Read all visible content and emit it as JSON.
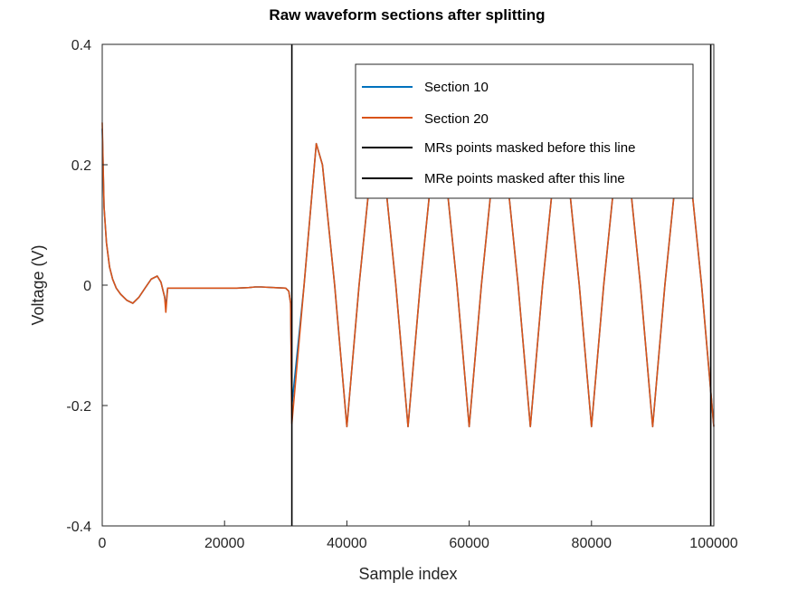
{
  "chart_data": {
    "type": "line",
    "title": "Raw waveform sections after splitting",
    "xlabel": "Sample index",
    "ylabel": "Voltage (V)",
    "xlim": [
      0,
      100000
    ],
    "ylim": [
      -0.4,
      0.4
    ],
    "xticks": [
      0,
      20000,
      40000,
      60000,
      80000,
      100000
    ],
    "xtick_labels": [
      "0",
      "20000",
      "40000",
      "60000",
      "80000",
      "100000"
    ],
    "yticks": [
      -0.4,
      -0.2,
      0,
      0.2,
      0.4
    ],
    "ytick_labels": [
      "-0.4",
      "-0.2",
      "0",
      "0.2",
      "0.4"
    ],
    "grid": false,
    "legend_position": "top-right",
    "series": [
      {
        "name": "Section 10",
        "color": "#0072bd",
        "x": [
          0,
          300,
          700,
          1200,
          1700,
          2300,
          3000,
          4000,
          5000,
          6000,
          7000,
          8000,
          9000,
          9600,
          10200,
          10400,
          10700,
          12000,
          15000,
          18000,
          20000,
          22000,
          24000,
          25000,
          26000,
          28000,
          30000,
          30500,
          30800,
          31000,
          33000,
          35000,
          36000,
          38000,
          40000,
          42000,
          44000,
          45000,
          46000,
          48000,
          50000,
          52000,
          54000,
          55000,
          56000,
          58000,
          60000,
          62000,
          64000,
          65000,
          66000,
          68000,
          70000,
          72000,
          74000,
          75000,
          76000,
          78000,
          80000,
          82000,
          84000,
          85000,
          86000,
          88000,
          90000,
          92000,
          94000,
          95000,
          96000,
          98000,
          100000
        ],
        "y": [
          0.26,
          0.13,
          0.07,
          0.03,
          0.01,
          -0.005,
          -0.015,
          -0.025,
          -0.03,
          -0.02,
          -0.005,
          0.01,
          0.015,
          0.005,
          -0.02,
          -0.035,
          -0.005,
          -0.005,
          -0.005,
          -0.005,
          -0.005,
          -0.005,
          -0.004,
          -0.003,
          -0.003,
          -0.004,
          -0.005,
          -0.01,
          -0.03,
          -0.2,
          0.0,
          0.235,
          0.2,
          0.0,
          -0.235,
          0.0,
          0.2,
          0.235,
          0.2,
          0.0,
          -0.235,
          0.0,
          0.2,
          0.235,
          0.2,
          0.0,
          -0.235,
          0.0,
          0.2,
          0.235,
          0.2,
          0.0,
          -0.235,
          0.0,
          0.2,
          0.235,
          0.2,
          0.0,
          -0.235,
          0.0,
          0.2,
          0.235,
          0.2,
          0.0,
          -0.235,
          0.0,
          0.2,
          0.235,
          0.2,
          0.0,
          -0.235
        ]
      },
      {
        "name": "Section 20",
        "color": "#d95319",
        "x": [
          0,
          300,
          700,
          1200,
          1700,
          2300,
          3000,
          4000,
          5000,
          6000,
          7000,
          8000,
          9000,
          9600,
          10200,
          10400,
          10700,
          12000,
          15000,
          18000,
          20000,
          22000,
          24000,
          25000,
          26000,
          28000,
          30000,
          30500,
          30800,
          31000,
          33000,
          35000,
          36000,
          38000,
          40000,
          42000,
          44000,
          45000,
          46000,
          48000,
          50000,
          52000,
          54000,
          55000,
          56000,
          58000,
          60000,
          62000,
          64000,
          65000,
          66000,
          68000,
          70000,
          72000,
          74000,
          75000,
          76000,
          78000,
          80000,
          82000,
          84000,
          85000,
          86000,
          88000,
          90000,
          92000,
          94000,
          95000,
          96000,
          98000,
          100000
        ],
        "y": [
          0.27,
          0.13,
          0.07,
          0.03,
          0.01,
          -0.005,
          -0.015,
          -0.025,
          -0.03,
          -0.02,
          -0.005,
          0.01,
          0.015,
          0.005,
          -0.02,
          -0.045,
          -0.005,
          -0.005,
          -0.005,
          -0.005,
          -0.005,
          -0.005,
          -0.004,
          -0.003,
          -0.003,
          -0.004,
          -0.005,
          -0.01,
          -0.03,
          -0.23,
          0.0,
          0.235,
          0.2,
          0.0,
          -0.235,
          0.0,
          0.2,
          0.235,
          0.2,
          0.0,
          -0.235,
          0.0,
          0.2,
          0.235,
          0.2,
          0.0,
          -0.235,
          0.0,
          0.2,
          0.235,
          0.2,
          0.0,
          -0.235,
          0.0,
          0.2,
          0.235,
          0.2,
          0.0,
          -0.235,
          0.0,
          0.2,
          0.235,
          0.2,
          0.0,
          -0.235,
          0.0,
          0.2,
          0.235,
          0.2,
          0.0,
          -0.235
        ]
      }
    ],
    "vlines": [
      {
        "name": "MRs points masked before this line",
        "x": 31000,
        "color": "#000000"
      },
      {
        "name": "MRe points masked after this line",
        "x": 99500,
        "color": "#000000"
      }
    ]
  }
}
